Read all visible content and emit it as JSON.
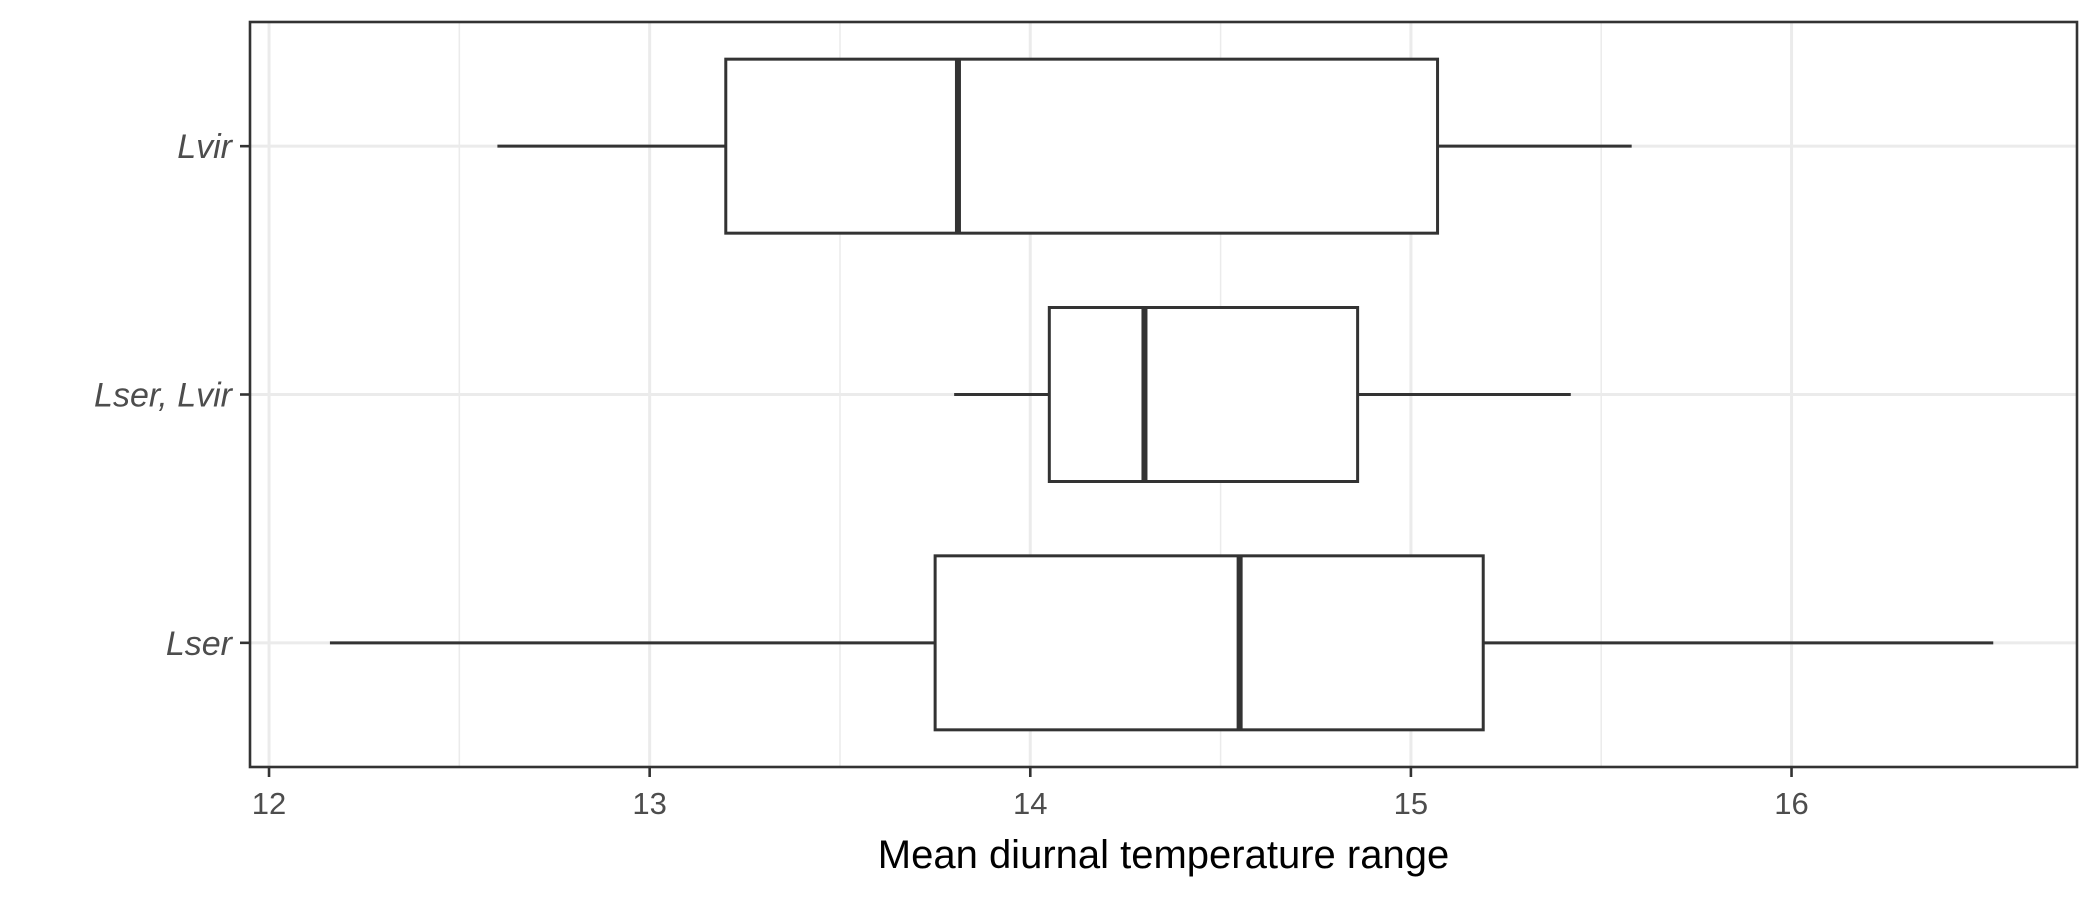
{
  "chart_data": {
    "type": "boxplot",
    "title": "",
    "xlabel": "Mean diurnal temperature range",
    "ylabel": "",
    "xlim": [
      11.95,
      16.75
    ],
    "x_ticks": [
      12,
      13,
      14,
      15,
      16
    ],
    "x_tick_labels": [
      "12",
      "13",
      "14",
      "15",
      "16"
    ],
    "grid": true,
    "legend": "none",
    "categories": [
      "Lvir",
      "Lser, Lvir",
      "Lser"
    ],
    "boxes": [
      {
        "category": "Lvir",
        "whisker_low": 12.6,
        "q1": 13.2,
        "median": 13.81,
        "q3": 15.07,
        "whisker_high": 15.58
      },
      {
        "category": "Lser, Lvir",
        "whisker_low": 13.8,
        "q1": 14.05,
        "median": 14.3,
        "q3": 14.86,
        "whisker_high": 15.42
      },
      {
        "category": "Lser",
        "whisker_low": 12.16,
        "q1": 13.75,
        "median": 14.55,
        "q3": 15.19,
        "whisker_high": 16.53
      }
    ],
    "colors": {
      "box_line": "#333333",
      "box_fill": "#ffffff",
      "grid": "#ebebeb",
      "panel_border": "#333333",
      "tick_text": "#4d4d4d",
      "axis_title": "#000000"
    }
  }
}
